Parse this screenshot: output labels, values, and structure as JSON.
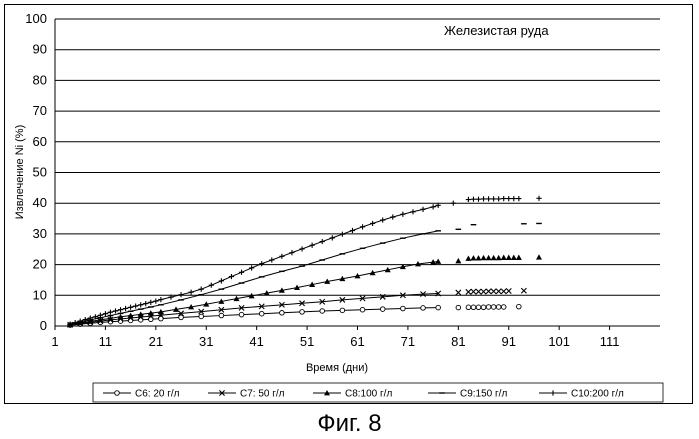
{
  "figure_caption": "Фиг. 8",
  "chart_data": {
    "type": "line",
    "title": "Железистая руда",
    "xlabel": "Время (дни)",
    "ylabel": "Извлечение Ni (%)",
    "xlim": [
      1,
      121
    ],
    "ylim": [
      0,
      100
    ],
    "x_ticks": [
      1,
      11,
      21,
      31,
      41,
      51,
      61,
      71,
      81,
      91,
      101,
      111
    ],
    "y_ticks": [
      0,
      10,
      20,
      30,
      40,
      50,
      60,
      70,
      80,
      90,
      100
    ],
    "grid": "horizontal",
    "legend_position": "bottom",
    "series": [
      {
        "name": "C6: 20 г/л",
        "marker": "circle",
        "x": [
          4,
          6,
          8,
          10,
          12,
          14,
          16,
          18,
          20,
          22,
          26,
          30,
          34,
          38,
          42,
          46,
          50,
          54,
          58,
          62,
          66,
          70,
          74,
          77,
          81,
          83,
          84,
          85,
          86,
          87,
          88,
          89,
          90,
          93
        ],
        "y": [
          0.3,
          0.6,
          0.9,
          1.2,
          1.4,
          1.6,
          1.8,
          2.0,
          2.2,
          2.4,
          2.8,
          3.1,
          3.4,
          3.7,
          4.0,
          4.3,
          4.6,
          4.9,
          5.1,
          5.3,
          5.5,
          5.7,
          5.9,
          6.0,
          6.0,
          6.1,
          6.1,
          6.1,
          6.1,
          6.2,
          6.2,
          6.2,
          6.2,
          6.3
        ]
      },
      {
        "name": "C7: 50 г/л",
        "marker": "x",
        "x": [
          4,
          6,
          8,
          10,
          12,
          14,
          16,
          18,
          20,
          22,
          26,
          30,
          34,
          38,
          42,
          46,
          50,
          54,
          58,
          62,
          66,
          70,
          74,
          77,
          81,
          83,
          84,
          85,
          86,
          87,
          88,
          89,
          90,
          91,
          94
        ],
        "y": [
          0.4,
          0.8,
          1.2,
          1.6,
          2.0,
          2.3,
          2.6,
          2.9,
          3.2,
          3.5,
          4.1,
          4.7,
          5.3,
          5.9,
          6.4,
          6.9,
          7.4,
          7.9,
          8.5,
          9.0,
          9.5,
          10.0,
          10.4,
          10.6,
          10.9,
          11.1,
          11.2,
          11.2,
          11.2,
          11.3,
          11.3,
          11.3,
          11.3,
          11.4,
          11.5
        ]
      },
      {
        "name": "C8:100 г/л",
        "marker": "triangle",
        "x": [
          4,
          6,
          8,
          10,
          12,
          14,
          16,
          18,
          20,
          22,
          25,
          28,
          31,
          34,
          37,
          40,
          43,
          46,
          49,
          52,
          55,
          58,
          61,
          64,
          67,
          70,
          73,
          76,
          77,
          81,
          83,
          84,
          85,
          86,
          87,
          88,
          89,
          90,
          91,
          92,
          93,
          97
        ],
        "y": [
          0.5,
          1.0,
          1.5,
          2.0,
          2.5,
          3.0,
          3.4,
          3.8,
          4.2,
          4.6,
          5.4,
          6.2,
          7.1,
          8.0,
          8.9,
          9.8,
          10.7,
          11.6,
          12.5,
          13.5,
          14.5,
          15.4,
          16.3,
          17.3,
          18.3,
          19.3,
          20.2,
          20.8,
          21.0,
          21.2,
          22.0,
          22.1,
          22.1,
          22.2,
          22.2,
          22.2,
          22.2,
          22.3,
          22.3,
          22.3,
          22.3,
          22.4
        ]
      },
      {
        "name": "C9:150 г/л",
        "marker": "dash",
        "x": [
          4,
          6,
          8,
          10,
          12,
          14,
          16,
          18,
          20,
          22,
          26,
          30,
          34,
          38,
          42,
          46,
          50,
          54,
          58,
          62,
          66,
          70,
          74,
          77,
          81,
          84,
          94,
          97
        ],
        "y": [
          0.6,
          1.3,
          2.0,
          2.7,
          3.4,
          4.1,
          4.8,
          5.5,
          6.2,
          6.9,
          8.5,
          10.2,
          12.0,
          14.0,
          16.0,
          17.8,
          19.5,
          21.5,
          23.5,
          25.3,
          27.0,
          28.6,
          30.0,
          31.0,
          31.5,
          33.0,
          33.3,
          33.4
        ]
      },
      {
        "name": "C10:200 г/л",
        "marker": "plus",
        "x": [
          4,
          5,
          6,
          7,
          8,
          9,
          10,
          11,
          12,
          13,
          14,
          15,
          16,
          17,
          18,
          19,
          20,
          21,
          22,
          24,
          26,
          28,
          30,
          32,
          34,
          36,
          38,
          40,
          42,
          44,
          46,
          48,
          50,
          52,
          54,
          56,
          58,
          60,
          62,
          64,
          66,
          68,
          70,
          72,
          74,
          76,
          77,
          80,
          83,
          84,
          85,
          86,
          87,
          88,
          89,
          90,
          91,
          92,
          93,
          97
        ],
        "y": [
          0.6,
          1.1,
          1.6,
          2.1,
          2.6,
          3.0,
          3.5,
          4.0,
          4.5,
          4.9,
          5.3,
          5.7,
          6.1,
          6.5,
          6.9,
          7.3,
          7.7,
          8.1,
          8.6,
          9.4,
          10.2,
          11.0,
          12.0,
          13.3,
          14.7,
          16.1,
          17.5,
          18.9,
          20.3,
          21.5,
          22.7,
          23.9,
          25.1,
          26.3,
          27.5,
          28.7,
          29.9,
          31.1,
          32.3,
          33.4,
          34.5,
          35.5,
          36.4,
          37.2,
          38.0,
          38.8,
          39.3,
          40.0,
          41.2,
          41.3,
          41.3,
          41.4,
          41.4,
          41.4,
          41.4,
          41.5,
          41.5,
          41.5,
          41.5,
          41.6
        ]
      }
    ]
  }
}
